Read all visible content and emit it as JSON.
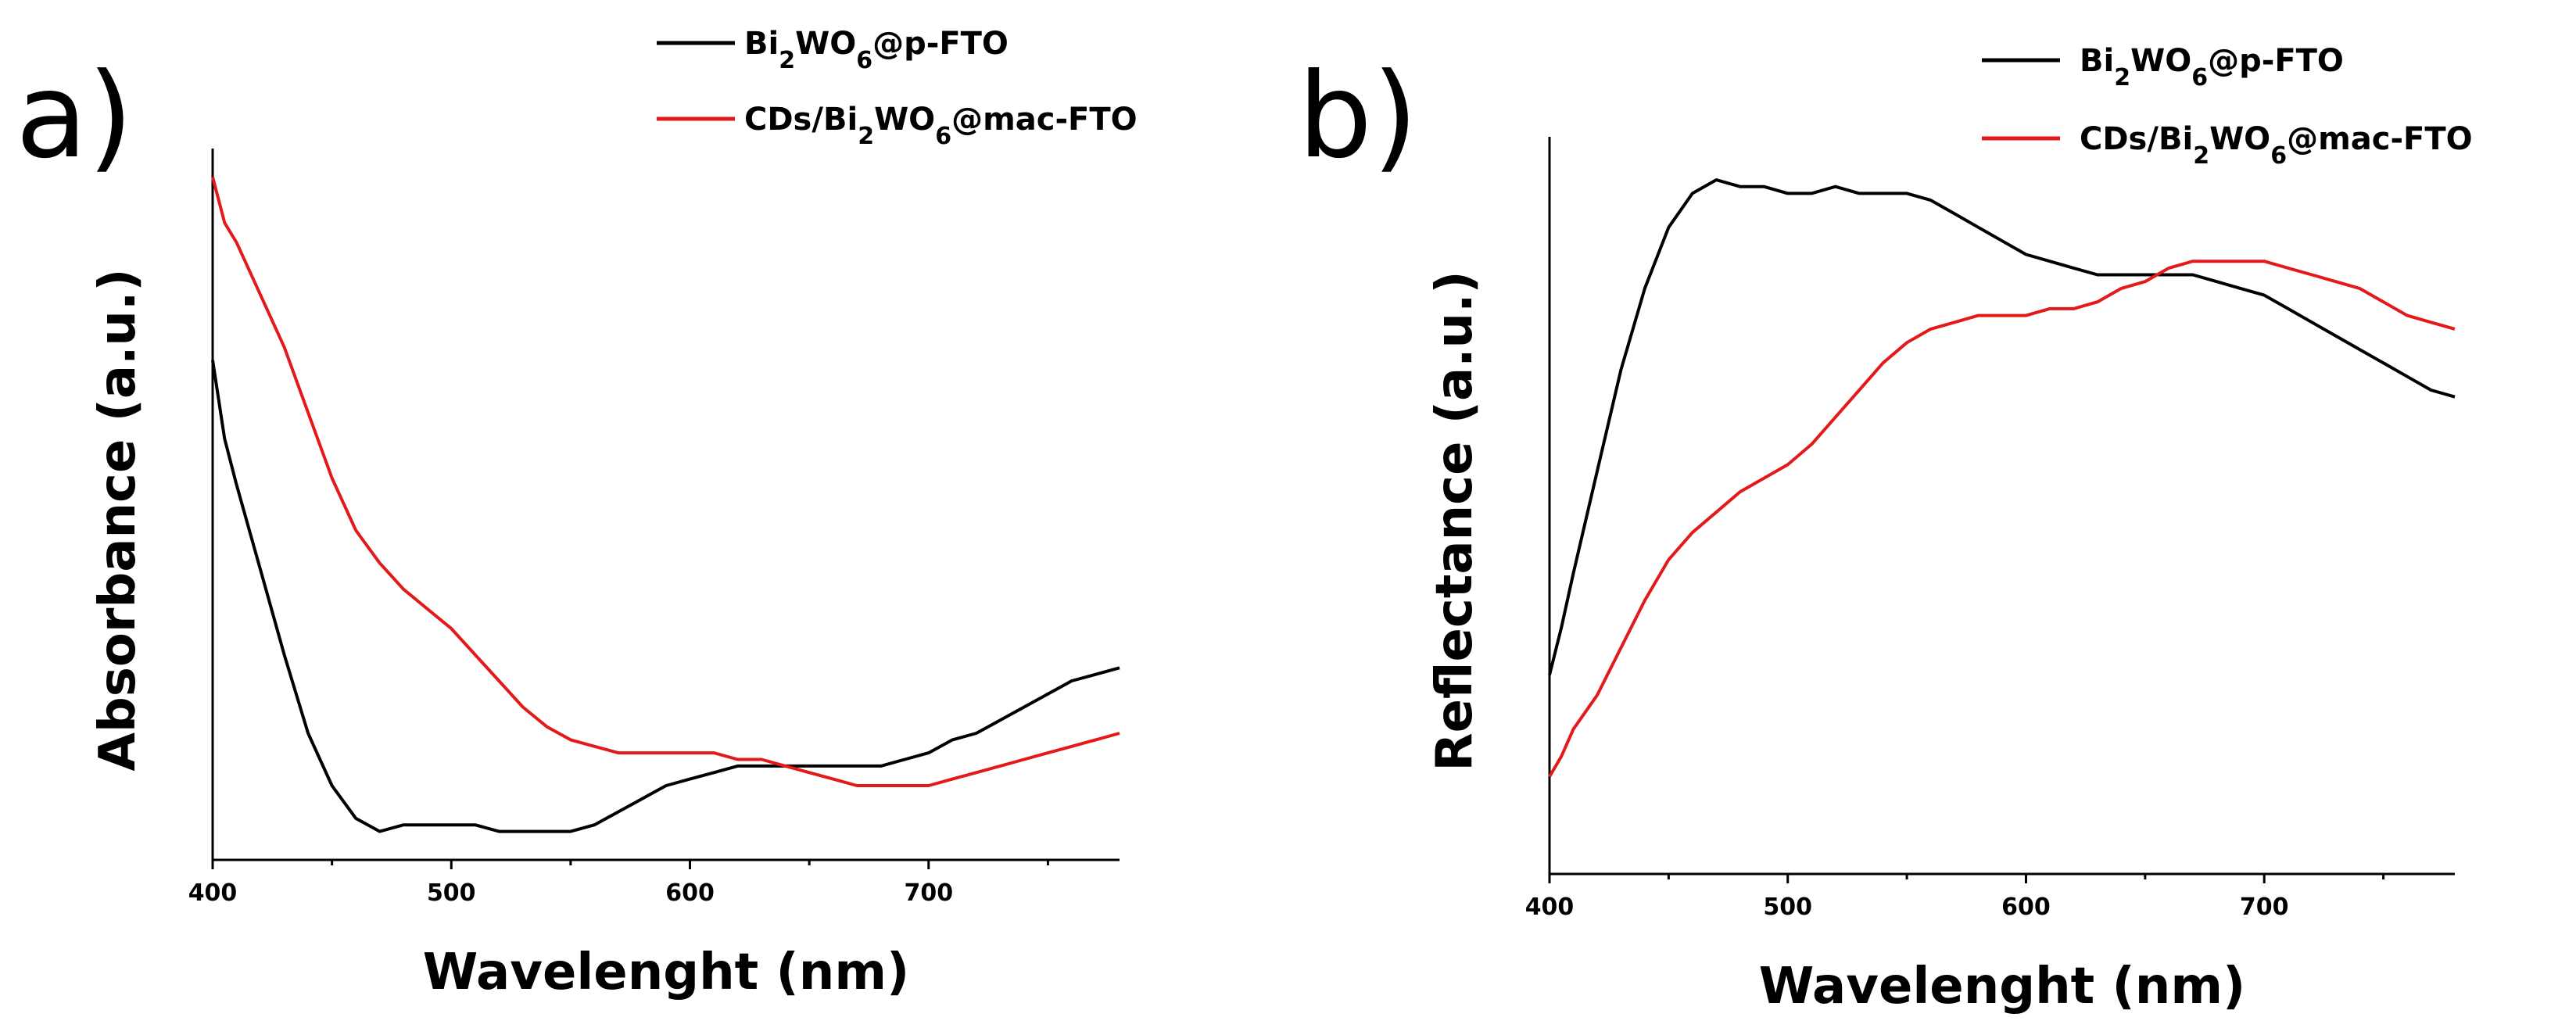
{
  "colors": {
    "black_series": "#000000",
    "red_series": "#e31a1c"
  },
  "chart_data": [
    {
      "panel": "a)",
      "type": "line",
      "xlabel": "Wavelenght (nm)",
      "ylabel": "Absorbance (a.u.)",
      "xlim": [
        400,
        780
      ],
      "ylim": [
        0,
        1
      ],
      "x_ticks": [
        400,
        500,
        600,
        700
      ],
      "y_ticks": [],
      "legend_position": "top-right",
      "series": [
        {
          "name": "Bi2WO6@p-FTO",
          "name_parts": [
            "Bi",
            "2",
            "WO",
            "6",
            "@p-FTO"
          ],
          "color": "#000000",
          "points": [
            [
              400,
              0.72
            ],
            [
              405,
              0.6
            ],
            [
              410,
              0.53
            ],
            [
              420,
              0.4
            ],
            [
              430,
              0.27
            ],
            [
              440,
              0.15
            ],
            [
              450,
              0.07
            ],
            [
              460,
              0.02
            ],
            [
              470,
              0.0
            ],
            [
              480,
              0.01
            ],
            [
              490,
              0.01
            ],
            [
              500,
              0.01
            ],
            [
              510,
              0.01
            ],
            [
              520,
              0.0
            ],
            [
              530,
              0.0
            ],
            [
              540,
              0.0
            ],
            [
              550,
              0.0
            ],
            [
              560,
              0.01
            ],
            [
              570,
              0.03
            ],
            [
              580,
              0.05
            ],
            [
              590,
              0.07
            ],
            [
              600,
              0.08
            ],
            [
              610,
              0.09
            ],
            [
              620,
              0.1
            ],
            [
              630,
              0.1
            ],
            [
              640,
              0.1
            ],
            [
              650,
              0.1
            ],
            [
              660,
              0.1
            ],
            [
              670,
              0.1
            ],
            [
              680,
              0.1
            ],
            [
              690,
              0.11
            ],
            [
              700,
              0.12
            ],
            [
              710,
              0.14
            ],
            [
              720,
              0.15
            ],
            [
              730,
              0.17
            ],
            [
              740,
              0.19
            ],
            [
              750,
              0.21
            ],
            [
              760,
              0.23
            ],
            [
              770,
              0.24
            ],
            [
              780,
              0.25
            ]
          ]
        },
        {
          "name": "CDs/Bi2WO6@mac-FTO",
          "name_parts": [
            "CDs/Bi",
            "2",
            "WO",
            "6",
            "@mac-FTO"
          ],
          "color": "#e31a1c",
          "points": [
            [
              400,
              1.0
            ],
            [
              405,
              0.93
            ],
            [
              410,
              0.9
            ],
            [
              420,
              0.82
            ],
            [
              430,
              0.74
            ],
            [
              440,
              0.64
            ],
            [
              450,
              0.54
            ],
            [
              460,
              0.46
            ],
            [
              470,
              0.41
            ],
            [
              480,
              0.37
            ],
            [
              490,
              0.34
            ],
            [
              500,
              0.31
            ],
            [
              510,
              0.27
            ],
            [
              520,
              0.23
            ],
            [
              530,
              0.19
            ],
            [
              540,
              0.16
            ],
            [
              550,
              0.14
            ],
            [
              560,
              0.13
            ],
            [
              570,
              0.12
            ],
            [
              580,
              0.12
            ],
            [
              590,
              0.12
            ],
            [
              600,
              0.12
            ],
            [
              610,
              0.12
            ],
            [
              620,
              0.11
            ],
            [
              630,
              0.11
            ],
            [
              640,
              0.1
            ],
            [
              650,
              0.09
            ],
            [
              660,
              0.08
            ],
            [
              670,
              0.07
            ],
            [
              680,
              0.07
            ],
            [
              690,
              0.07
            ],
            [
              700,
              0.07
            ],
            [
              710,
              0.08
            ],
            [
              720,
              0.09
            ],
            [
              730,
              0.1
            ],
            [
              740,
              0.11
            ],
            [
              750,
              0.12
            ],
            [
              760,
              0.13
            ],
            [
              770,
              0.14
            ],
            [
              780,
              0.15
            ]
          ]
        }
      ]
    },
    {
      "panel": "b)",
      "type": "line",
      "xlabel": "Wavelenght (nm)",
      "ylabel": "Reflectance (a.u.)",
      "xlim": [
        400,
        780
      ],
      "ylim": [
        0,
        1
      ],
      "x_ticks": [
        400,
        500,
        600,
        700
      ],
      "y_ticks": [],
      "legend_position": "top-right",
      "series": [
        {
          "name": "Bi2WO6@p-FTO",
          "name_parts": [
            "Bi",
            "2",
            "WO",
            "6",
            "@p-FTO"
          ],
          "color": "#000000",
          "points": [
            [
              400,
              0.25
            ],
            [
              405,
              0.32
            ],
            [
              410,
              0.4
            ],
            [
              420,
              0.55
            ],
            [
              430,
              0.7
            ],
            [
              440,
              0.82
            ],
            [
              450,
              0.91
            ],
            [
              460,
              0.96
            ],
            [
              470,
              0.98
            ],
            [
              480,
              0.97
            ],
            [
              490,
              0.97
            ],
            [
              500,
              0.96
            ],
            [
              510,
              0.96
            ],
            [
              520,
              0.97
            ],
            [
              530,
              0.96
            ],
            [
              540,
              0.96
            ],
            [
              550,
              0.96
            ],
            [
              560,
              0.95
            ],
            [
              570,
              0.93
            ],
            [
              580,
              0.91
            ],
            [
              590,
              0.89
            ],
            [
              600,
              0.87
            ],
            [
              610,
              0.86
            ],
            [
              620,
              0.85
            ],
            [
              630,
              0.84
            ],
            [
              640,
              0.84
            ],
            [
              650,
              0.84
            ],
            [
              660,
              0.84
            ],
            [
              670,
              0.84
            ],
            [
              680,
              0.83
            ],
            [
              690,
              0.82
            ],
            [
              700,
              0.81
            ],
            [
              710,
              0.79
            ],
            [
              720,
              0.77
            ],
            [
              730,
              0.75
            ],
            [
              740,
              0.73
            ],
            [
              750,
              0.71
            ],
            [
              760,
              0.69
            ],
            [
              770,
              0.67
            ],
            [
              780,
              0.66
            ]
          ]
        },
        {
          "name": "CDs/Bi2WO6@mac-FTO",
          "name_parts": [
            "CDs/Bi",
            "2",
            "WO",
            "6",
            "@mac-FTO"
          ],
          "color": "#e31a1c",
          "points": [
            [
              400,
              0.1
            ],
            [
              405,
              0.13
            ],
            [
              410,
              0.17
            ],
            [
              420,
              0.22
            ],
            [
              430,
              0.29
            ],
            [
              440,
              0.36
            ],
            [
              450,
              0.42
            ],
            [
              460,
              0.46
            ],
            [
              470,
              0.49
            ],
            [
              480,
              0.52
            ],
            [
              490,
              0.54
            ],
            [
              500,
              0.56
            ],
            [
              510,
              0.59
            ],
            [
              520,
              0.63
            ],
            [
              530,
              0.67
            ],
            [
              540,
              0.71
            ],
            [
              550,
              0.74
            ],
            [
              560,
              0.76
            ],
            [
              570,
              0.77
            ],
            [
              580,
              0.78
            ],
            [
              590,
              0.78
            ],
            [
              600,
              0.78
            ],
            [
              610,
              0.79
            ],
            [
              620,
              0.79
            ],
            [
              630,
              0.8
            ],
            [
              640,
              0.82
            ],
            [
              650,
              0.83
            ],
            [
              660,
              0.85
            ],
            [
              670,
              0.86
            ],
            [
              680,
              0.86
            ],
            [
              690,
              0.86
            ],
            [
              700,
              0.86
            ],
            [
              710,
              0.85
            ],
            [
              720,
              0.84
            ],
            [
              730,
              0.83
            ],
            [
              740,
              0.82
            ],
            [
              750,
              0.8
            ],
            [
              760,
              0.78
            ],
            [
              770,
              0.77
            ],
            [
              780,
              0.76
            ]
          ]
        }
      ]
    }
  ]
}
